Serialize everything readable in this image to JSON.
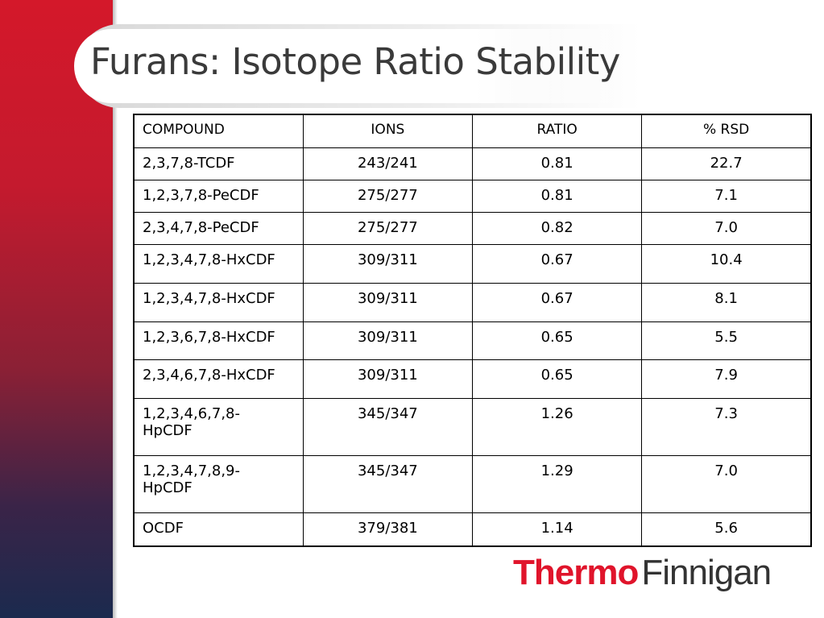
{
  "header": {
    "title": "Furans: Isotope Ratio Stability"
  },
  "table": {
    "columns": [
      "COMPOUND",
      "IONS",
      "RATIO",
      "% RSD"
    ],
    "rows": [
      [
        "2,3,7,8-TCDF",
        "243/241",
        "0.81",
        "22.7"
      ],
      [
        "1,2,3,7,8-PeCDF",
        "275/277",
        "0.81",
        "7.1"
      ],
      [
        "2,3,4,7,8-PeCDF",
        "275/277",
        "0.82",
        "7.0"
      ],
      [
        "1,2,3,4,7,8-HxCDF",
        "309/311",
        "0.67",
        "10.4"
      ],
      [
        "1,2,3,4,7,8-HxCDF",
        "309/311",
        "0.67",
        "8.1"
      ],
      [
        "1,2,3,6,7,8-HxCDF",
        "309/311",
        "0.65",
        "5.5"
      ],
      [
        "2,3,4,6,7,8-HxCDF",
        "309/311",
        "0.65",
        "7.9"
      ],
      [
        "1,2,3,4,6,7,8-HpCDF",
        "345/347",
        "1.26",
        "7.3"
      ],
      [
        "1,2,3,4,7,8,9-HpCDF",
        "345/347",
        "1.29",
        "7.0"
      ],
      [
        "OCDF",
        "379/381",
        "1.14",
        "5.6"
      ]
    ]
  },
  "logo": {
    "brand": "Thermo",
    "product": "Finnigan"
  }
}
